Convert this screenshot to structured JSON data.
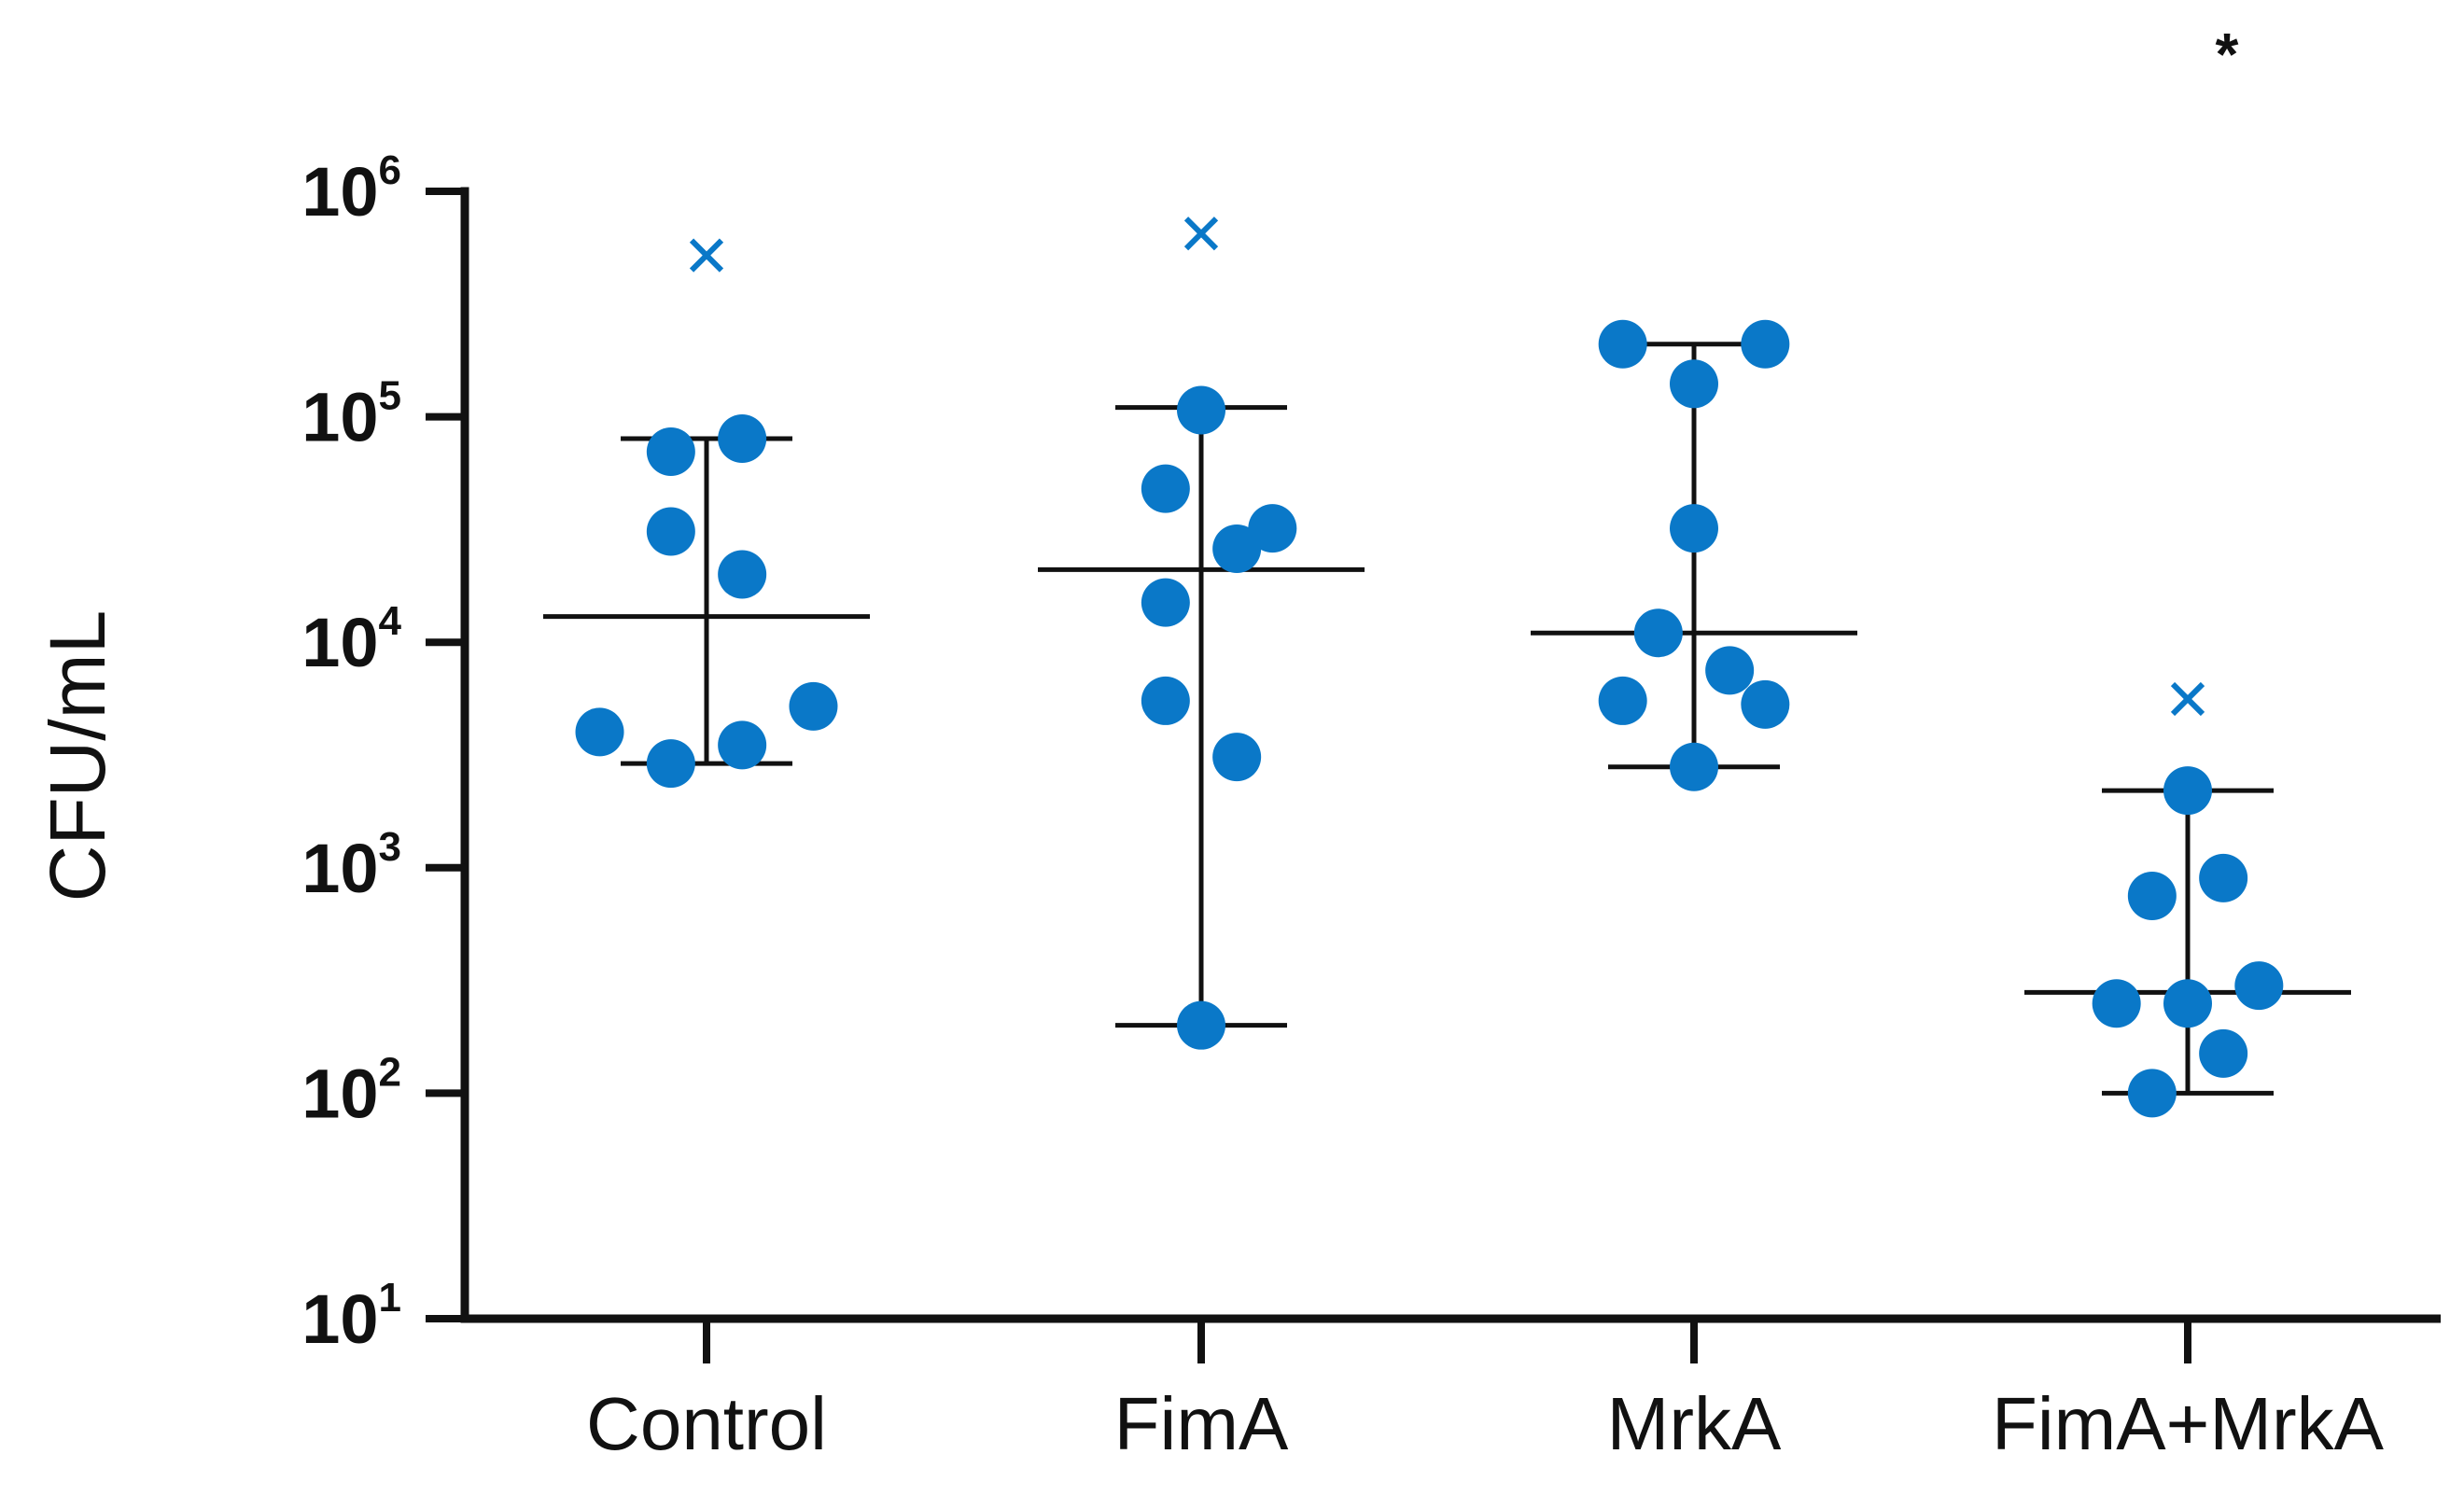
{
  "chart_data": {
    "type": "scatter",
    "ylabel": "CFU/mL",
    "yscale": "log",
    "ylim": [
      10,
      1000000
    ],
    "y_ticks": [
      {
        "base": "10",
        "exp": "1",
        "value": 10
      },
      {
        "base": "10",
        "exp": "2",
        "value": 100
      },
      {
        "base": "10",
        "exp": "3",
        "value": 1000
      },
      {
        "base": "10",
        "exp": "4",
        "value": 10000
      },
      {
        "base": "10",
        "exp": "5",
        "value": 100000
      },
      {
        "base": "10",
        "exp": "6",
        "value": 1000000
      }
    ],
    "categories": [
      "Control",
      "FimA",
      "MrkA",
      "FimA+MrkA"
    ],
    "series": [
      {
        "name": "Control",
        "points": [
          {
            "offset": -0.03,
            "value": 70000
          },
          {
            "offset": 0.03,
            "value": 80000
          },
          {
            "offset": -0.03,
            "value": 31000
          },
          {
            "offset": 0.03,
            "value": 20000
          },
          {
            "offset": 0.09,
            "value": 5200
          },
          {
            "offset": -0.09,
            "value": 4000
          },
          {
            "offset": 0.03,
            "value": 3500
          },
          {
            "offset": -0.03,
            "value": 2900
          }
        ],
        "median": 13000,
        "range_min": 2900,
        "range_max": 80000,
        "outlier": 520000
      },
      {
        "name": "FimA",
        "points": [
          {
            "offset": 0.0,
            "value": 107000
          },
          {
            "offset": -0.03,
            "value": 48000
          },
          {
            "offset": 0.06,
            "value": 32000
          },
          {
            "offset": 0.03,
            "value": 26000
          },
          {
            "offset": -0.03,
            "value": 15000
          },
          {
            "offset": -0.03,
            "value": 5500
          },
          {
            "offset": 0.03,
            "value": 3100
          },
          {
            "offset": 0.0,
            "value": 200
          }
        ],
        "median": 21000,
        "range_min": 200,
        "range_max": 110000,
        "outlier": 650000
      },
      {
        "name": "MrkA",
        "points": [
          {
            "offset": -0.06,
            "value": 210000
          },
          {
            "offset": 0.06,
            "value": 210000
          },
          {
            "offset": 0.0,
            "value": 140000
          },
          {
            "offset": 0.0,
            "value": 32000
          },
          {
            "offset": -0.03,
            "value": 11000
          },
          {
            "offset": 0.03,
            "value": 7500
          },
          {
            "offset": -0.06,
            "value": 5500
          },
          {
            "offset": 0.06,
            "value": 5300
          },
          {
            "offset": 0.0,
            "value": 2800
          }
        ],
        "median": 11000,
        "range_min": 2800,
        "range_max": 210000,
        "outlier": null
      },
      {
        "name": "FimA+MrkA",
        "points": [
          {
            "offset": 0.0,
            "value": 2200
          },
          {
            "offset": 0.03,
            "value": 900
          },
          {
            "offset": -0.03,
            "value": 750
          },
          {
            "offset": 0.06,
            "value": 300
          },
          {
            "offset": -0.06,
            "value": 250
          },
          {
            "offset": 0.0,
            "value": 250
          },
          {
            "offset": 0.03,
            "value": 150
          },
          {
            "offset": -0.03,
            "value": 100
          }
        ],
        "median": 280,
        "range_min": 100,
        "range_max": 2200,
        "outlier": 5600
      }
    ],
    "annotations": [
      {
        "text": "*",
        "category": "FimA+MrkA"
      }
    ],
    "colors": {
      "points": "#0a78c8",
      "outlier": "#0a78c8",
      "lines": "#111111",
      "axis": "#111111"
    }
  }
}
